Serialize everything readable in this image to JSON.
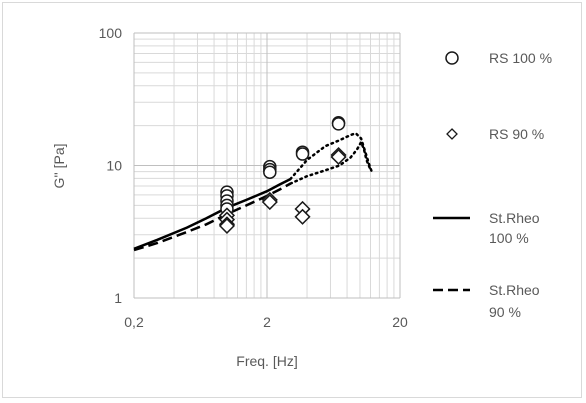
{
  "chart_data": {
    "type": "scatter",
    "title": "",
    "xlabel": "Freq. [Hz]",
    "ylabel": "G'' [Pa]",
    "x_scale": "log",
    "y_scale": "log",
    "xlim": [
      0.2,
      20
    ],
    "ylim": [
      1,
      100
    ],
    "x_ticks": [
      "0,2",
      "2",
      "20"
    ],
    "y_ticks": [
      "1",
      "10",
      "100"
    ],
    "grid": true,
    "legend_position": "right",
    "series": [
      {
        "name": "RS 100 %",
        "style": "marker-circle",
        "color": "#1a1a1a",
        "points": [
          [
            1.0,
            6.3
          ],
          [
            1.0,
            5.9
          ],
          [
            1.0,
            5.4
          ],
          [
            1.0,
            5.0
          ],
          [
            1.0,
            4.7
          ],
          [
            2.1,
            9.8
          ],
          [
            2.1,
            9.3
          ],
          [
            2.1,
            8.9
          ],
          [
            3.7,
            12.6
          ],
          [
            3.7,
            12.2
          ],
          [
            6.9,
            21.0
          ],
          [
            6.9,
            20.6
          ]
        ]
      },
      {
        "name": "RS 90 %",
        "style": "marker-diamond",
        "color": "#1a1a1a",
        "points": [
          [
            1.0,
            4.2
          ],
          [
            1.0,
            3.9
          ],
          [
            1.0,
            3.6
          ],
          [
            1.0,
            3.5
          ],
          [
            2.1,
            5.5
          ],
          [
            2.1,
            5.3
          ],
          [
            3.7,
            4.7
          ],
          [
            3.7,
            4.1
          ],
          [
            6.9,
            12.0
          ],
          [
            6.9,
            11.6
          ]
        ]
      },
      {
        "name": "St.Rheo 100 %",
        "style": "solid",
        "color": "#000000",
        "points": [
          [
            0.2,
            2.35
          ],
          [
            0.3,
            2.75
          ],
          [
            0.5,
            3.4
          ],
          [
            0.7,
            4.0
          ],
          [
            1.0,
            4.8
          ],
          [
            1.4,
            5.5
          ],
          [
            2.0,
            6.4
          ],
          [
            2.5,
            7.2
          ],
          [
            3.0,
            7.9
          ]
        ]
      },
      {
        "name": "St.Rheo 90 %",
        "style": "dashed",
        "color": "#000000",
        "points": [
          [
            0.2,
            2.3
          ],
          [
            0.3,
            2.6
          ],
          [
            0.5,
            3.15
          ],
          [
            0.7,
            3.6
          ],
          [
            1.0,
            4.3
          ],
          [
            1.4,
            5.0
          ],
          [
            2.0,
            5.9
          ],
          [
            2.5,
            6.6
          ],
          [
            3.0,
            7.3
          ]
        ]
      },
      {
        "name": "",
        "style": "dotted",
        "color": "#000000",
        "points": [
          [
            3.0,
            7.9
          ],
          [
            4.0,
            11.0
          ],
          [
            5.5,
            14.0
          ],
          [
            7.0,
            15.5
          ],
          [
            8.5,
            17.0
          ],
          [
            9.3,
            17.5
          ],
          [
            10.2,
            16.0
          ],
          [
            11.0,
            12.5
          ],
          [
            11.8,
            10.0
          ],
          [
            12.3,
            8.9
          ]
        ]
      },
      {
        "name": "",
        "style": "dotted",
        "color": "#000000",
        "points": [
          [
            3.0,
            7.3
          ],
          [
            4.0,
            8.3
          ],
          [
            5.5,
            9.2
          ],
          [
            7.0,
            10.0
          ],
          [
            8.5,
            11.5
          ],
          [
            9.5,
            13.2
          ],
          [
            10.2,
            15.0
          ],
          [
            10.7,
            13.3
          ],
          [
            11.2,
            11.0
          ],
          [
            12.0,
            9.3
          ]
        ]
      }
    ]
  }
}
